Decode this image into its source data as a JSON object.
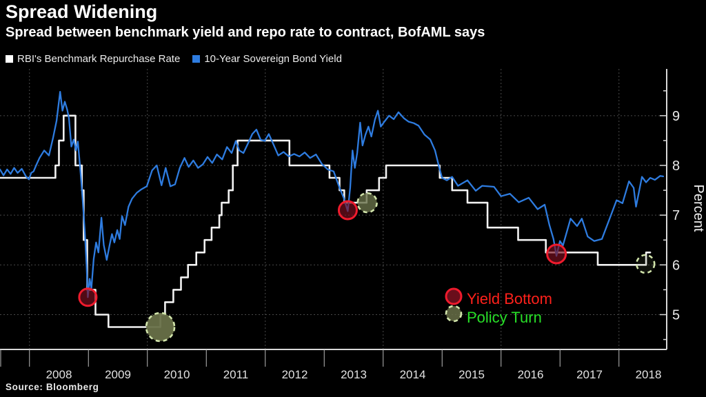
{
  "header": {
    "title": "Spread Widening",
    "subtitle": "Spread between benchmark yield and repo rate to contract, BofAML says"
  },
  "legend": [
    {
      "label": "RBI's Benchmark Repurchase Rate",
      "color": "#ffffff"
    },
    {
      "label": "10-Year Sovereign Bond Yield",
      "color": "#2e7ce0"
    }
  ],
  "source": "Source: Bloomberg",
  "chart_data": {
    "type": "line",
    "title": "Spread Widening",
    "ylabel": "Percent",
    "x_axis": {
      "min": 2007.5,
      "max": 2018.81,
      "year_labels": [
        2008,
        2009,
        2010,
        2011,
        2012,
        2013,
        2014,
        2015,
        2016,
        2017,
        2018
      ],
      "gridline_years": [
        2008,
        2010,
        2012,
        2014,
        2016,
        2018
      ]
    },
    "y_axis": {
      "min": 4.3,
      "max": 9.94,
      "major_ticks": [
        5,
        6,
        7,
        8,
        9
      ],
      "minor_ticks": [
        4.5,
        5.5,
        6.5,
        7.5,
        8.5,
        9.5
      ]
    },
    "series": [
      {
        "name": "RBI's Benchmark Repurchase Rate",
        "color": "#f2f2f2",
        "width": 2.6,
        "type": "step",
        "points": [
          [
            2007.5,
            7.75
          ],
          [
            2008.44,
            8.0
          ],
          [
            2008.5,
            8.5
          ],
          [
            2008.58,
            9.0
          ],
          [
            2008.78,
            8.0
          ],
          [
            2008.89,
            7.5
          ],
          [
            2008.92,
            6.5
          ],
          [
            2008.98,
            5.5
          ],
          [
            2009.12,
            5.0
          ],
          [
            2009.34,
            4.75
          ],
          [
            2010.22,
            5.0
          ],
          [
            2010.3,
            5.25
          ],
          [
            2010.44,
            5.5
          ],
          [
            2010.57,
            5.75
          ],
          [
            2010.69,
            6.0
          ],
          [
            2010.83,
            6.25
          ],
          [
            2010.97,
            6.5
          ],
          [
            2011.09,
            6.75
          ],
          [
            2011.22,
            7.0
          ],
          [
            2011.26,
            7.25
          ],
          [
            2011.38,
            7.5
          ],
          [
            2011.45,
            8.0
          ],
          [
            2011.53,
            8.5
          ],
          [
            2012.41,
            8.0
          ],
          [
            2013.09,
            7.75
          ],
          [
            2013.26,
            7.5
          ],
          [
            2013.34,
            7.25
          ],
          [
            2013.72,
            7.5
          ],
          [
            2013.93,
            7.75
          ],
          [
            2014.05,
            8.0
          ],
          [
            2014.96,
            7.75
          ],
          [
            2015.17,
            7.5
          ],
          [
            2015.43,
            7.25
          ],
          [
            2015.77,
            6.75
          ],
          [
            2016.29,
            6.5
          ],
          [
            2016.76,
            6.25
          ],
          [
            2017.64,
            6.0
          ],
          [
            2018.46,
            6.25
          ],
          [
            2018.53,
            6.25
          ]
        ]
      },
      {
        "name": "10-Year Sovereign Bond Yield",
        "color": "#2e7ce0",
        "width": 2.3,
        "type": "line",
        "points": [
          [
            2007.5,
            7.92
          ],
          [
            2007.56,
            7.8
          ],
          [
            2007.62,
            7.92
          ],
          [
            2007.68,
            7.83
          ],
          [
            2007.74,
            7.95
          ],
          [
            2007.8,
            7.85
          ],
          [
            2007.87,
            7.93
          ],
          [
            2007.94,
            7.78
          ],
          [
            2007.99,
            7.72
          ],
          [
            2008.03,
            7.85
          ],
          [
            2008.07,
            7.88
          ],
          [
            2008.12,
            8.02
          ],
          [
            2008.17,
            8.15
          ],
          [
            2008.25,
            8.3
          ],
          [
            2008.33,
            8.2
          ],
          [
            2008.4,
            8.55
          ],
          [
            2008.46,
            8.9
          ],
          [
            2008.52,
            9.48
          ],
          [
            2008.56,
            9.1
          ],
          [
            2008.6,
            9.28
          ],
          [
            2008.64,
            9.12
          ],
          [
            2008.67,
            8.95
          ],
          [
            2008.71,
            8.38
          ],
          [
            2008.75,
            8.52
          ],
          [
            2008.79,
            8.3
          ],
          [
            2008.82,
            8.48
          ],
          [
            2008.86,
            7.95
          ],
          [
            2008.9,
            7.35
          ],
          [
            2008.94,
            6.65
          ],
          [
            2008.97,
            5.95
          ],
          [
            2008.99,
            5.35
          ],
          [
            2009.02,
            5.72
          ],
          [
            2009.05,
            5.52
          ],
          [
            2009.09,
            6.12
          ],
          [
            2009.13,
            6.45
          ],
          [
            2009.17,
            6.25
          ],
          [
            2009.22,
            6.95
          ],
          [
            2009.26,
            6.4
          ],
          [
            2009.31,
            6.1
          ],
          [
            2009.36,
            6.4
          ],
          [
            2009.4,
            6.62
          ],
          [
            2009.44,
            6.45
          ],
          [
            2009.49,
            6.7
          ],
          [
            2009.53,
            6.52
          ],
          [
            2009.57,
            6.98
          ],
          [
            2009.62,
            6.8
          ],
          [
            2009.68,
            7.17
          ],
          [
            2009.74,
            7.33
          ],
          [
            2009.82,
            7.45
          ],
          [
            2009.9,
            7.52
          ],
          [
            2009.99,
            7.58
          ],
          [
            2010.08,
            7.9
          ],
          [
            2010.16,
            8.0
          ],
          [
            2010.24,
            7.6
          ],
          [
            2010.31,
            7.95
          ],
          [
            2010.39,
            7.58
          ],
          [
            2010.47,
            7.62
          ],
          [
            2010.55,
            7.95
          ],
          [
            2010.63,
            8.15
          ],
          [
            2010.7,
            7.97
          ],
          [
            2010.78,
            8.1
          ],
          [
            2010.86,
            7.95
          ],
          [
            2010.94,
            8.02
          ],
          [
            2011.02,
            8.17
          ],
          [
            2011.1,
            8.05
          ],
          [
            2011.18,
            8.22
          ],
          [
            2011.27,
            8.12
          ],
          [
            2011.35,
            8.37
          ],
          [
            2011.43,
            8.25
          ],
          [
            2011.5,
            8.49
          ],
          [
            2011.56,
            8.3
          ],
          [
            2011.63,
            8.25
          ],
          [
            2011.71,
            8.45
          ],
          [
            2011.78,
            8.63
          ],
          [
            2011.85,
            8.72
          ],
          [
            2011.92,
            8.52
          ],
          [
            2011.99,
            8.49
          ],
          [
            2012.06,
            8.63
          ],
          [
            2012.14,
            8.42
          ],
          [
            2012.22,
            8.2
          ],
          [
            2012.31,
            8.27
          ],
          [
            2012.4,
            8.18
          ],
          [
            2012.49,
            8.23
          ],
          [
            2012.58,
            8.18
          ],
          [
            2012.67,
            8.26
          ],
          [
            2012.76,
            8.15
          ],
          [
            2012.86,
            8.22
          ],
          [
            2012.96,
            8.03
          ],
          [
            2013.06,
            7.92
          ],
          [
            2013.16,
            7.88
          ],
          [
            2013.26,
            7.55
          ],
          [
            2013.33,
            7.35
          ],
          [
            2013.4,
            7.08
          ],
          [
            2013.44,
            7.55
          ],
          [
            2013.48,
            8.3
          ],
          [
            2013.52,
            7.95
          ],
          [
            2013.56,
            8.25
          ],
          [
            2013.61,
            8.86
          ],
          [
            2013.65,
            8.4
          ],
          [
            2013.7,
            8.62
          ],
          [
            2013.75,
            8.78
          ],
          [
            2013.8,
            8.58
          ],
          [
            2013.86,
            8.92
          ],
          [
            2013.91,
            9.1
          ],
          [
            2013.96,
            8.78
          ],
          [
            2014.02,
            8.88
          ],
          [
            2014.1,
            9.0
          ],
          [
            2014.18,
            8.93
          ],
          [
            2014.26,
            9.07
          ],
          [
            2014.35,
            8.95
          ],
          [
            2014.43,
            8.88
          ],
          [
            2014.52,
            8.85
          ],
          [
            2014.6,
            8.8
          ],
          [
            2014.7,
            8.62
          ],
          [
            2014.8,
            8.52
          ],
          [
            2014.88,
            8.3
          ],
          [
            2014.95,
            7.96
          ],
          [
            2015.0,
            7.75
          ],
          [
            2015.08,
            7.7
          ],
          [
            2015.17,
            7.77
          ],
          [
            2015.27,
            7.59
          ],
          [
            2015.43,
            7.7
          ],
          [
            2015.57,
            7.49
          ],
          [
            2015.68,
            7.59
          ],
          [
            2015.88,
            7.57
          ],
          [
            2016.0,
            7.38
          ],
          [
            2016.15,
            7.43
          ],
          [
            2016.3,
            7.26
          ],
          [
            2016.47,
            7.35
          ],
          [
            2016.62,
            7.12
          ],
          [
            2016.74,
            7.21
          ],
          [
            2016.82,
            6.8
          ],
          [
            2016.89,
            6.52
          ],
          [
            2016.94,
            6.18
          ],
          [
            2017.0,
            6.48
          ],
          [
            2017.05,
            6.39
          ],
          [
            2017.18,
            6.93
          ],
          [
            2017.29,
            6.78
          ],
          [
            2017.37,
            6.93
          ],
          [
            2017.47,
            6.57
          ],
          [
            2017.58,
            6.48
          ],
          [
            2017.71,
            6.52
          ],
          [
            2017.88,
            7.05
          ],
          [
            2017.96,
            7.3
          ],
          [
            2018.06,
            7.24
          ],
          [
            2018.17,
            7.68
          ],
          [
            2018.25,
            7.55
          ],
          [
            2018.29,
            7.17
          ],
          [
            2018.39,
            7.77
          ],
          [
            2018.46,
            7.66
          ],
          [
            2018.53,
            7.75
          ],
          [
            2018.61,
            7.71
          ],
          [
            2018.7,
            7.79
          ],
          [
            2018.75,
            7.78
          ]
        ]
      }
    ],
    "markers": {
      "yield_bottom": {
        "label": "Yield Bottom",
        "stroke": "#ef1b2d",
        "fill": "#7c1020",
        "text_color": "#ff211b",
        "points": [
          [
            2008.99,
            5.35,
            12.5,
            0.65
          ],
          [
            2013.4,
            7.1,
            13,
            0.65
          ],
          [
            2016.94,
            6.22,
            13.5,
            0.65
          ]
        ]
      },
      "policy_turn": {
        "label": "Policy Turn",
        "stroke": "#d2e5ab",
        "fill": "#687048",
        "text_color": "#28df28",
        "points": [
          [
            2010.22,
            4.75,
            20.5,
            0.95
          ],
          [
            2013.73,
            7.25,
            14,
            0.8
          ],
          [
            2018.45,
            6.02,
            13,
            0.15
          ]
        ]
      }
    }
  }
}
